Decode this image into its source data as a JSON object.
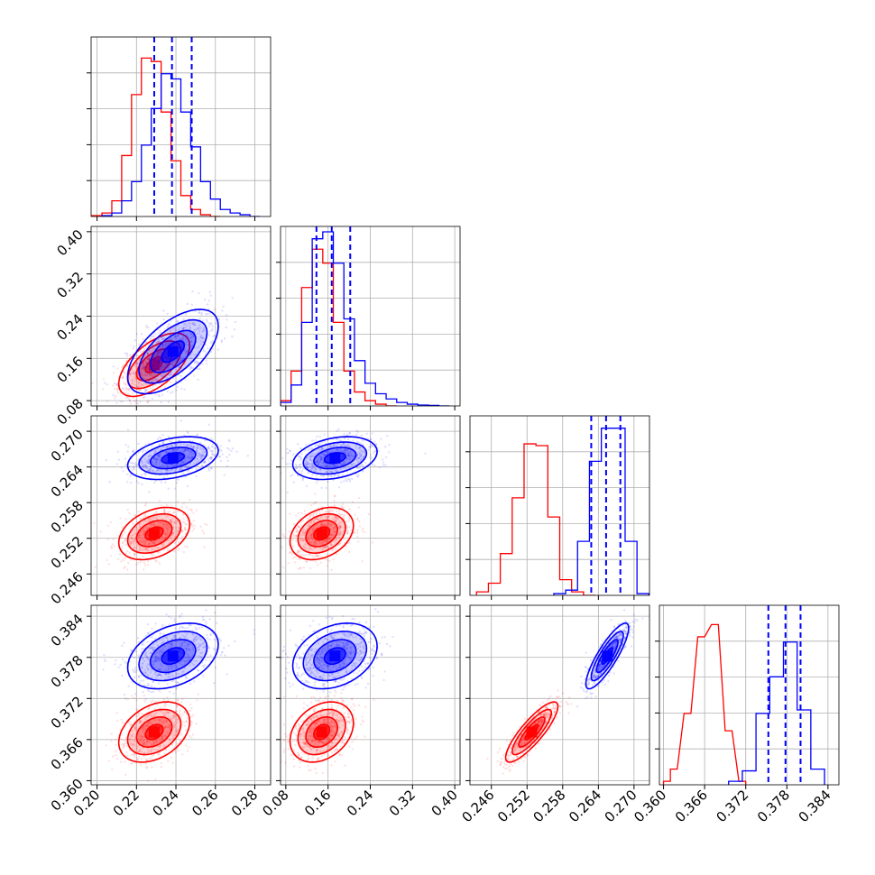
{
  "chart_data": {
    "type": "scatter",
    "variant": "corner-plot",
    "colors": {
      "series_a": "#0000ff",
      "series_b": "#ff0000",
      "grid": "#b0b0b0",
      "axes": "#000000"
    },
    "params": [
      {
        "range": [
          0.197,
          0.288
        ],
        "ticks": [
          "0.20",
          "0.22",
          "0.24",
          "0.26",
          "0.28"
        ],
        "tick_values": [
          0.2,
          0.22,
          0.24,
          0.26,
          0.28
        ]
      },
      {
        "range": [
          0.07,
          0.41
        ],
        "ticks": [
          "0.08",
          "0.16",
          "0.24",
          "0.32",
          "0.40"
        ],
        "tick_values": [
          0.08,
          0.16,
          0.24,
          0.32,
          0.4
        ]
      },
      {
        "range": [
          0.2424,
          0.2726
        ],
        "ticks": [
          "0.246",
          "0.252",
          "0.258",
          "0.264",
          "0.270"
        ],
        "tick_values": [
          0.246,
          0.252,
          0.258,
          0.264,
          0.27
        ]
      },
      {
        "range": [
          0.3594,
          0.3856
        ],
        "ticks": [
          "0.360",
          "0.366",
          "0.372",
          "0.378",
          "0.384"
        ],
        "tick_values": [
          0.36,
          0.366,
          0.372,
          0.378,
          0.384
        ]
      }
    ],
    "series": [
      {
        "color": "#0000ff",
        "mean": [
          0.2385,
          0.173,
          0.2655,
          0.3782
        ],
        "sd": [
          0.0115,
          0.04,
          0.0018,
          0.0024
        ],
        "corr": [
          [
            1,
            0.6,
            0.35,
            0.35
          ],
          [
            0.6,
            1,
            0.3,
            0.3
          ],
          [
            0.35,
            0.3,
            1,
            0.85
          ],
          [
            0.35,
            0.3,
            0.85,
            1
          ]
        ],
        "quantiles": [
          [
            0.229,
            0.238,
            0.248
          ],
          [
            0.138,
            0.167,
            0.202
          ],
          [
            0.2628,
            0.2653,
            0.2677
          ],
          [
            0.3753,
            0.3778,
            0.38
          ]
        ],
        "histograms": [
          {
            "x": [
              0.205,
              0.21,
              0.215,
              0.22,
              0.225,
              0.23,
              0.235,
              0.24,
              0.245,
              0.25,
              0.255,
              0.26,
              0.265,
              0.27,
              0.275,
              0.28
            ],
            "y": [
              0.005,
              0.02,
              0.09,
              0.2,
              0.41,
              0.62,
              0.82,
              0.79,
              0.6,
              0.4,
              0.2,
              0.1,
              0.04,
              0.02,
              0.01,
              0.0
            ]
          },
          {
            "x": [
              0.08,
              0.1,
              0.12,
              0.14,
              0.16,
              0.18,
              0.2,
              0.22,
              0.24,
              0.26,
              0.28,
              0.3,
              0.32,
              0.34,
              0.36,
              0.38
            ],
            "y": [
              0.02,
              0.12,
              0.48,
              0.96,
              1.0,
              0.82,
              0.5,
              0.26,
              0.13,
              0.07,
              0.04,
              0.02,
              0.01,
              0.005,
              0.003,
              0.0
            ]
          },
          {
            "x": [
              0.2575,
              0.2595,
              0.2615,
              0.2635,
              0.2655,
              0.2675,
              0.2695,
              0.2715
            ],
            "y": [
              0.01,
              0.03,
              0.31,
              0.77,
              0.96,
              0.96,
              0.31,
              0.01
            ]
          },
          {
            "x": [
              0.3705,
              0.3725,
              0.3745,
              0.3765,
              0.3785,
              0.3805,
              0.3825
            ],
            "y": [
              0.02,
              0.08,
              0.41,
              0.62,
              0.82,
              0.43,
              0.09
            ]
          }
        ]
      },
      {
        "color": "#ff0000",
        "mean": [
          0.229,
          0.148,
          0.2528,
          0.3671
        ],
        "sd": [
          0.009,
          0.03,
          0.0022,
          0.0022
        ],
        "corr": [
          [
            1,
            0.6,
            0.35,
            0.35
          ],
          [
            0.6,
            1,
            0.3,
            0.3
          ],
          [
            0.35,
            0.3,
            1,
            0.85
          ],
          [
            0.35,
            0.3,
            0.85,
            1
          ]
        ],
        "quantiles": [],
        "histograms": [
          {
            "x": [
              0.2,
              0.205,
              0.21,
              0.215,
              0.22,
              0.225,
              0.23,
              0.235,
              0.24,
              0.245,
              0.25,
              0.255,
              0.26
            ],
            "y": [
              0.005,
              0.02,
              0.09,
              0.35,
              0.7,
              0.91,
              0.89,
              0.6,
              0.32,
              0.12,
              0.04,
              0.01,
              0.0
            ]
          },
          {
            "x": [
              0.08,
              0.1,
              0.12,
              0.14,
              0.16,
              0.18,
              0.2,
              0.22,
              0.24,
              0.26,
              0.28
            ],
            "y": [
              0.03,
              0.2,
              0.68,
              0.9,
              0.82,
              0.48,
              0.2,
              0.08,
              0.03,
              0.01,
              0.0
            ]
          },
          {
            "x": [
              0.2445,
              0.2465,
              0.2485,
              0.2505,
              0.2525,
              0.2545,
              0.2565,
              0.2585,
              0.2605,
              0.2625
            ],
            "y": [
              0.02,
              0.07,
              0.24,
              0.56,
              0.87,
              0.86,
              0.45,
              0.09,
              0.02,
              0.0
            ]
          },
          {
            "x": [
              0.3605,
              0.3615,
              0.3635,
              0.3655,
              0.3675,
              0.3695,
              0.3715
            ],
            "y": [
              0.02,
              0.09,
              0.41,
              0.85,
              0.92,
              0.31,
              0.02
            ]
          }
        ]
      }
    ],
    "contour_levels_sigma": [
      0.5,
      1.0,
      1.5,
      2.0
    ],
    "scatter_points_per_panel": 650
  }
}
